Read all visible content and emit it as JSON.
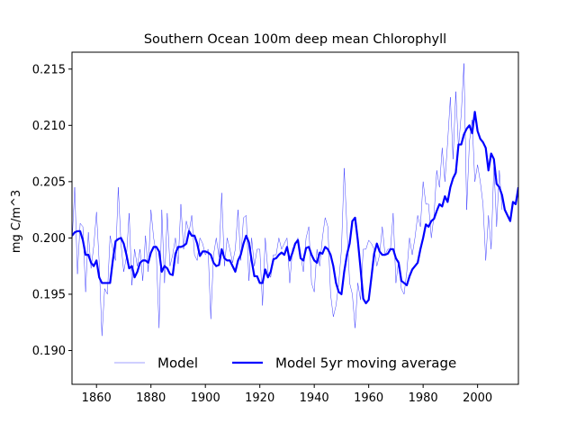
{
  "chart_data": {
    "type": "line",
    "title": "Southern Ocean 100m deep mean Chlorophyll",
    "xlabel": "",
    "ylabel": "mg C/m^3",
    "xlim": [
      1851,
      2015
    ],
    "ylim": [
      0.187,
      0.2165
    ],
    "xticks": [
      1860,
      1880,
      1900,
      1920,
      1940,
      1960,
      1980,
      2000
    ],
    "yticks": [
      0.19,
      0.195,
      0.2,
      0.205,
      0.21,
      0.215
    ],
    "ytick_labels": [
      "0.190",
      "0.195",
      "0.200",
      "0.205",
      "0.210",
      "0.215"
    ],
    "grid": false,
    "legend": {
      "placement": "bottom",
      "frameless": true
    },
    "x_start": 1851,
    "series": [
      {
        "name": "Model",
        "color": "#0000ff",
        "style": "thin",
        "values": [
          0.1995,
          0.2045,
          0.1968,
          0.2013,
          0.201,
          0.1952,
          0.2005,
          0.1973,
          0.1993,
          0.2023,
          0.1978,
          0.1913,
          0.1955,
          0.195,
          0.2002,
          0.199,
          0.198,
          0.2045,
          0.1995,
          0.197,
          0.1983,
          0.2022,
          0.1958,
          0.199,
          0.1975,
          0.199,
          0.1962,
          0.2002,
          0.197,
          0.2025,
          0.2,
          0.1985,
          0.192,
          0.2025,
          0.196,
          0.2022,
          0.1975,
          0.1985,
          0.2,
          0.1977,
          0.203,
          0.199,
          0.2015,
          0.2005,
          0.202,
          0.1985,
          0.198,
          0.2,
          0.1995,
          0.1985,
          0.199,
          0.1928,
          0.1985,
          0.2,
          0.1983,
          0.204,
          0.1975,
          0.2,
          0.199,
          0.1978,
          0.199,
          0.2025,
          0.198,
          0.2018,
          0.202,
          0.1962,
          0.2,
          0.1975,
          0.199,
          0.199,
          0.194,
          0.2,
          0.197,
          0.1965,
          0.1985,
          0.1985,
          0.2,
          0.199,
          0.1995,
          0.2,
          0.196,
          0.199,
          0.1995,
          0.2,
          0.1985,
          0.197,
          0.2,
          0.201,
          0.196,
          0.1952,
          0.199,
          0.1975,
          0.2,
          0.2018,
          0.201,
          0.195,
          0.193,
          0.194,
          0.196,
          0.199,
          0.2062,
          0.201,
          0.196,
          0.195,
          0.192,
          0.196,
          0.1945,
          0.199,
          0.199,
          0.1998,
          0.1995,
          0.199,
          0.1975,
          0.1985,
          0.201,
          0.1985,
          0.199,
          0.199,
          0.2022,
          0.196,
          0.198,
          0.1955,
          0.195,
          0.197,
          0.2,
          0.1985,
          0.2,
          0.202,
          0.201,
          0.205,
          0.203,
          0.203,
          0.2,
          0.202,
          0.206,
          0.2045,
          0.208,
          0.205,
          0.2085,
          0.2125,
          0.207,
          0.213,
          0.208,
          0.211,
          0.2155,
          0.2025,
          0.2085,
          0.2105,
          0.205,
          0.2065,
          0.205,
          0.203,
          0.198,
          0.202,
          0.199,
          0.2065,
          0.201,
          0.206,
          0.2025
        ]
      },
      {
        "name": "Model 5yr moving average",
        "color": "#0000ff",
        "style": "thick",
        "values": [
          0.2002,
          0.2005,
          0.2006,
          0.2006,
          0.1998,
          0.1985,
          0.1985,
          0.1978,
          0.1975,
          0.198,
          0.1965,
          0.196,
          0.196,
          0.196,
          0.196,
          0.198,
          0.1997,
          0.1999,
          0.2,
          0.1995,
          0.1985,
          0.1973,
          0.1975,
          0.1965,
          0.197,
          0.1978,
          0.198,
          0.198,
          0.1978,
          0.1987,
          0.1992,
          0.1992,
          0.1988,
          0.197,
          0.1975,
          0.1973,
          0.1968,
          0.1967,
          0.1986,
          0.1992,
          0.1992,
          0.1993,
          0.1995,
          0.2006,
          0.2002,
          0.2002,
          0.1995,
          0.1984,
          0.1988,
          0.1988,
          0.1987,
          0.1985,
          0.1978,
          0.1975,
          0.1976,
          0.199,
          0.1982,
          0.198,
          0.198,
          0.1975,
          0.197,
          0.198,
          0.1985,
          0.1995,
          0.2002,
          0.1996,
          0.198,
          0.1966,
          0.1966,
          0.196,
          0.196,
          0.1972,
          0.1965,
          0.197,
          0.1981,
          0.1982,
          0.1985,
          0.1987,
          0.1985,
          0.1992,
          0.198,
          0.1987,
          0.1995,
          0.1998,
          0.1982,
          0.198,
          0.1991,
          0.1992,
          0.1985,
          0.198,
          0.1978,
          0.1987,
          0.1986,
          0.1992,
          0.199,
          0.1985,
          0.1975,
          0.196,
          0.1952,
          0.195,
          0.197,
          0.1985,
          0.1995,
          0.2015,
          0.2018,
          0.1998,
          0.1973,
          0.1946,
          0.1942,
          0.1945,
          0.1965,
          0.1986,
          0.1995,
          0.1988,
          0.1985,
          0.1985,
          0.1986,
          0.199,
          0.199,
          0.1982,
          0.1978,
          0.1962,
          0.196,
          0.1958,
          0.1966,
          0.1972,
          0.1975,
          0.1978,
          0.199,
          0.2,
          0.2012,
          0.201,
          0.2015,
          0.2017,
          0.2024,
          0.203,
          0.2028,
          0.2037,
          0.2032,
          0.2045,
          0.2053,
          0.2058,
          0.2083,
          0.2083,
          0.2092,
          0.2097,
          0.21,
          0.2093,
          0.2112,
          0.2095,
          0.2088,
          0.2085,
          0.208,
          0.206,
          0.2075,
          0.207,
          0.2048,
          0.2045,
          0.2038,
          0.2025,
          0.202,
          0.2015,
          0.2032,
          0.203,
          0.2045
        ]
      }
    ]
  }
}
